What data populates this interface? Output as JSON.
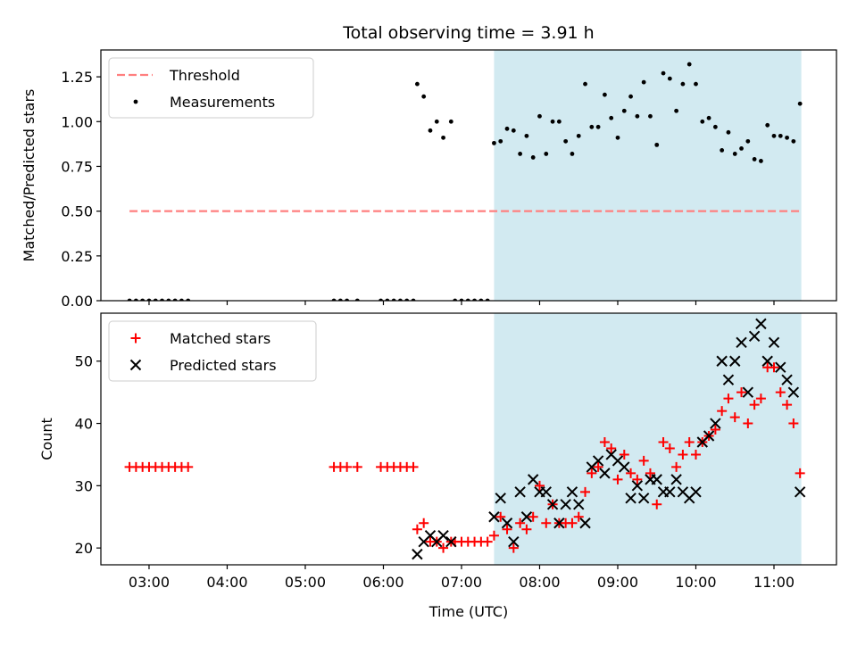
{
  "title": "Total observing time = 3.91 h",
  "xlabel": "Time (UTC)",
  "x_ticks": [
    "03:00",
    "04:00",
    "05:00",
    "06:00",
    "07:00",
    "08:00",
    "09:00",
    "10:00",
    "11:00"
  ],
  "colors": {
    "threshold": "#ff7f7f",
    "measurements": "#000000",
    "matched": "#ff0000",
    "predicted": "#000000",
    "shade": "#add8e6"
  },
  "chart_data": [
    {
      "type": "scatter",
      "ylabel": "Matched/Predicted stars",
      "xlim": [
        "02:23",
        "11:48"
      ],
      "ylim": [
        0,
        1.4
      ],
      "y_ticks": [
        "0.00",
        "0.25",
        "0.50",
        "0.75",
        "1.00",
        "1.25"
      ],
      "shaded_region": {
        "x": [
          "07:25",
          "11:21"
        ]
      },
      "legend": {
        "position": "top-left",
        "entries": [
          "Threshold",
          "Measurements"
        ]
      },
      "series": [
        {
          "name": "Threshold",
          "kind": "dashed-line",
          "x": [
            "02:45",
            "11:21"
          ],
          "y": [
            0.5,
            0.5
          ]
        },
        {
          "name": "Measurements",
          "kind": "points",
          "x": [
            "02:45",
            "02:50",
            "02:55",
            "03:00",
            "03:05",
            "03:10",
            "03:15",
            "03:20",
            "03:25",
            "03:30",
            "05:22",
            "05:27",
            "05:32",
            "05:40",
            "05:58",
            "06:03",
            "06:08",
            "06:13",
            "06:18",
            "06:23",
            "06:26",
            "06:31",
            "06:36",
            "06:41",
            "06:46",
            "06:52",
            "06:55",
            "07:00",
            "07:05",
            "07:10",
            "07:15",
            "07:20",
            "07:25",
            "07:30",
            "07:35",
            "07:40",
            "07:45",
            "07:50",
            "07:55",
            "08:00",
            "08:05",
            "08:10",
            "08:15",
            "08:20",
            "08:25",
            "08:30",
            "08:35",
            "08:40",
            "08:45",
            "08:50",
            "08:55",
            "09:00",
            "09:05",
            "09:10",
            "09:15",
            "09:20",
            "09:25",
            "09:30",
            "09:35",
            "09:40",
            "09:45",
            "09:50",
            "09:55",
            "10:00",
            "10:05",
            "10:10",
            "10:15",
            "10:20",
            "10:25",
            "10:30",
            "10:35",
            "10:40",
            "10:45",
            "10:50",
            "10:55",
            "11:00",
            "11:05",
            "11:10",
            "11:15",
            "11:20"
          ],
          "y": [
            0,
            0,
            0,
            0,
            0,
            0,
            0,
            0,
            0,
            0,
            0,
            0,
            0,
            0,
            0,
            0,
            0,
            0,
            0,
            0,
            1.21,
            1.14,
            0.95,
            1.0,
            0.91,
            1.0,
            0,
            0,
            0,
            0,
            0,
            0,
            0.88,
            0.89,
            0.96,
            0.95,
            0.82,
            0.92,
            0.8,
            1.03,
            0.82,
            1.0,
            1.0,
            0.89,
            0.82,
            0.92,
            1.21,
            0.97,
            0.97,
            1.15,
            1.02,
            0.91,
            1.06,
            1.14,
            1.03,
            1.22,
            1.03,
            0.87,
            1.27,
            1.24,
            1.06,
            1.21,
            1.32,
            1.21,
            1.0,
            1.02,
            0.97,
            0.84,
            0.94,
            0.82,
            0.85,
            0.89,
            0.79,
            0.78,
            0.98,
            0.92,
            0.92,
            0.91,
            0.89,
            1.1
          ]
        }
      ]
    },
    {
      "type": "scatter",
      "ylabel": "Count",
      "xlim": [
        "02:23",
        "11:48"
      ],
      "ylim": [
        17.3,
        57.7
      ],
      "y_ticks": [
        "20",
        "30",
        "40",
        "50"
      ],
      "shaded_region": {
        "x": [
          "07:25",
          "11:21"
        ]
      },
      "legend": {
        "position": "top-left",
        "entries": [
          "Matched stars",
          "Predicted stars"
        ]
      },
      "series": [
        {
          "name": "Matched stars",
          "marker": "+",
          "x": [
            "02:45",
            "02:50",
            "02:55",
            "03:00",
            "03:05",
            "03:10",
            "03:15",
            "03:20",
            "03:25",
            "03:30",
            "05:22",
            "05:27",
            "05:32",
            "05:40",
            "05:58",
            "06:03",
            "06:08",
            "06:13",
            "06:18",
            "06:23",
            "06:26",
            "06:31",
            "06:36",
            "06:41",
            "06:46",
            "06:52",
            "06:55",
            "07:00",
            "07:05",
            "07:10",
            "07:15",
            "07:20",
            "07:25",
            "07:30",
            "07:35",
            "07:40",
            "07:45",
            "07:50",
            "07:55",
            "08:00",
            "08:05",
            "08:10",
            "08:15",
            "08:20",
            "08:25",
            "08:30",
            "08:35",
            "08:40",
            "08:45",
            "08:50",
            "08:55",
            "09:00",
            "09:05",
            "09:10",
            "09:15",
            "09:20",
            "09:25",
            "09:30",
            "09:35",
            "09:40",
            "09:45",
            "09:50",
            "09:55",
            "10:00",
            "10:05",
            "10:10",
            "10:15",
            "10:20",
            "10:25",
            "10:30",
            "10:35",
            "10:40",
            "10:45",
            "10:50",
            "10:55",
            "11:00",
            "11:05",
            "11:10",
            "11:15",
            "11:20"
          ],
          "y": [
            33,
            33,
            33,
            33,
            33,
            33,
            33,
            33,
            33,
            33,
            33,
            33,
            33,
            33,
            33,
            33,
            33,
            33,
            33,
            33,
            23,
            24,
            21,
            21,
            20,
            21,
            21,
            21,
            21,
            21,
            21,
            21,
            22,
            25,
            23,
            20,
            24,
            23,
            25,
            30,
            24,
            27,
            24,
            24,
            24,
            25,
            29,
            32,
            33,
            37,
            36,
            31,
            35,
            32,
            31,
            34,
            32,
            27,
            37,
            36,
            33,
            35,
            37,
            35,
            37,
            38,
            39,
            42,
            44,
            41,
            45,
            40,
            43,
            44,
            49,
            49,
            45,
            43,
            40,
            32
          ]
        },
        {
          "name": "Predicted stars",
          "marker": "x",
          "x": [
            "06:26",
            "06:31",
            "06:36",
            "06:41",
            "06:46",
            "06:52",
            "07:25",
            "07:30",
            "07:35",
            "07:40",
            "07:45",
            "07:50",
            "07:55",
            "08:00",
            "08:05",
            "08:10",
            "08:15",
            "08:20",
            "08:25",
            "08:30",
            "08:35",
            "08:40",
            "08:45",
            "08:50",
            "08:55",
            "09:00",
            "09:05",
            "09:10",
            "09:15",
            "09:20",
            "09:25",
            "09:30",
            "09:35",
            "09:40",
            "09:45",
            "09:50",
            "09:55",
            "10:00",
            "10:05",
            "10:10",
            "10:15",
            "10:20",
            "10:25",
            "10:30",
            "10:35",
            "10:40",
            "10:45",
            "10:50",
            "10:55",
            "11:00",
            "11:05",
            "11:10",
            "11:15",
            "11:20"
          ],
          "y": [
            19,
            21,
            22,
            21,
            22,
            21,
            25,
            28,
            24,
            21,
            29,
            25,
            31,
            29,
            29,
            27,
            24,
            27,
            29,
            27,
            24,
            33,
            34,
            32,
            35,
            34,
            33,
            28,
            30,
            28,
            31,
            31,
            29,
            29,
            31,
            29,
            28,
            29,
            37,
            38,
            40,
            50,
            47,
            50,
            53,
            45,
            54,
            56,
            50,
            53,
            49,
            47,
            45,
            29
          ]
        }
      ]
    }
  ]
}
